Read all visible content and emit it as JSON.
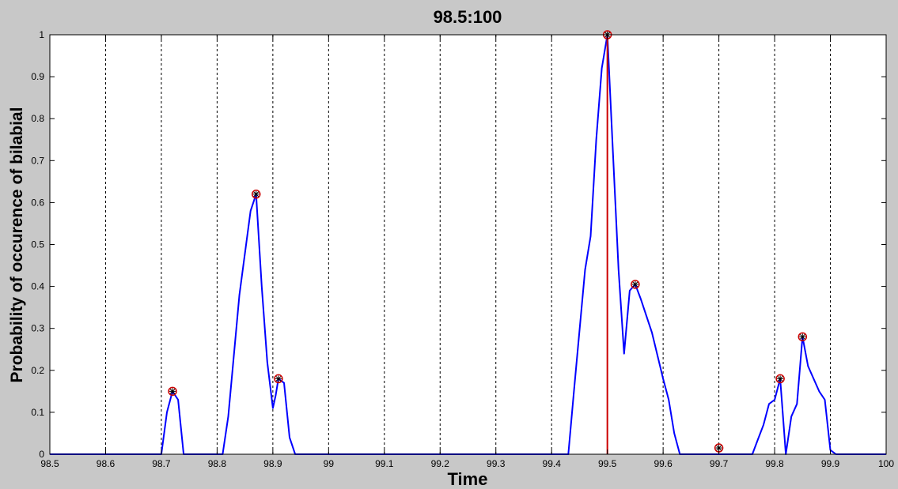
{
  "chart_data": {
    "type": "line",
    "title": "98.5:100",
    "xlabel": "Time",
    "ylabel": "Probability of occurence of bilabial",
    "xlim": [
      98.5,
      100
    ],
    "ylim": [
      0,
      1
    ],
    "xticks": [
      "98.5",
      "98.6",
      "98.7",
      "98.8",
      "98.9",
      "99",
      "99.1",
      "99.2",
      "99.3",
      "99.4",
      "99.5",
      "99.6",
      "99.7",
      "99.8",
      "99.9",
      "100"
    ],
    "yticks": [
      "0",
      "0.1",
      "0.2",
      "0.3",
      "0.4",
      "0.5",
      "0.6",
      "0.7",
      "0.8",
      "0.9",
      "1"
    ],
    "vertical_gridlines": "dashed",
    "series": [
      {
        "color": "#0000ff",
        "x": [
          98.5,
          98.7,
          98.71,
          98.72,
          98.73,
          98.74,
          98.81,
          98.82,
          98.84,
          98.86,
          98.87,
          98.88,
          98.89,
          98.9,
          98.905,
          98.91,
          98.92,
          98.93,
          98.94,
          99.43,
          99.44,
          99.46,
          99.47,
          99.48,
          99.49,
          99.5,
          99.51,
          99.52,
          99.53,
          99.54,
          99.55,
          99.56,
          99.58,
          99.6,
          99.61,
          99.62,
          99.63,
          99.64,
          99.76,
          99.77,
          99.78,
          99.79,
          99.8,
          99.81,
          99.82,
          99.83,
          99.84,
          99.85,
          99.86,
          99.88,
          99.89,
          99.9,
          99.91,
          100
        ],
        "y": [
          0,
          0,
          0.1,
          0.15,
          0.13,
          0,
          0,
          0.09,
          0.38,
          0.58,
          0.62,
          0.4,
          0.22,
          0.11,
          0.14,
          0.18,
          0.17,
          0.04,
          0,
          0,
          0.15,
          0.44,
          0.52,
          0.75,
          0.92,
          1.0,
          0.72,
          0.44,
          0.24,
          0.39,
          0.405,
          0.37,
          0.29,
          0.18,
          0.13,
          0.05,
          0,
          0,
          0,
          0.035,
          0.07,
          0.12,
          0.13,
          0.18,
          0,
          0.09,
          0.12,
          0.28,
          0.21,
          0.15,
          0.13,
          0.01,
          0,
          0
        ]
      }
    ],
    "peaks": {
      "color": "#cc0000",
      "marker": "circle-star",
      "x": [
        98.72,
        98.87,
        98.91,
        99.5,
        99.55,
        99.7,
        99.81,
        99.85
      ],
      "y": [
        0.15,
        0.62,
        0.18,
        1.0,
        0.405,
        0.015,
        0.18,
        0.28
      ]
    },
    "vline": {
      "x": 99.5,
      "color": "#cc0000"
    }
  }
}
